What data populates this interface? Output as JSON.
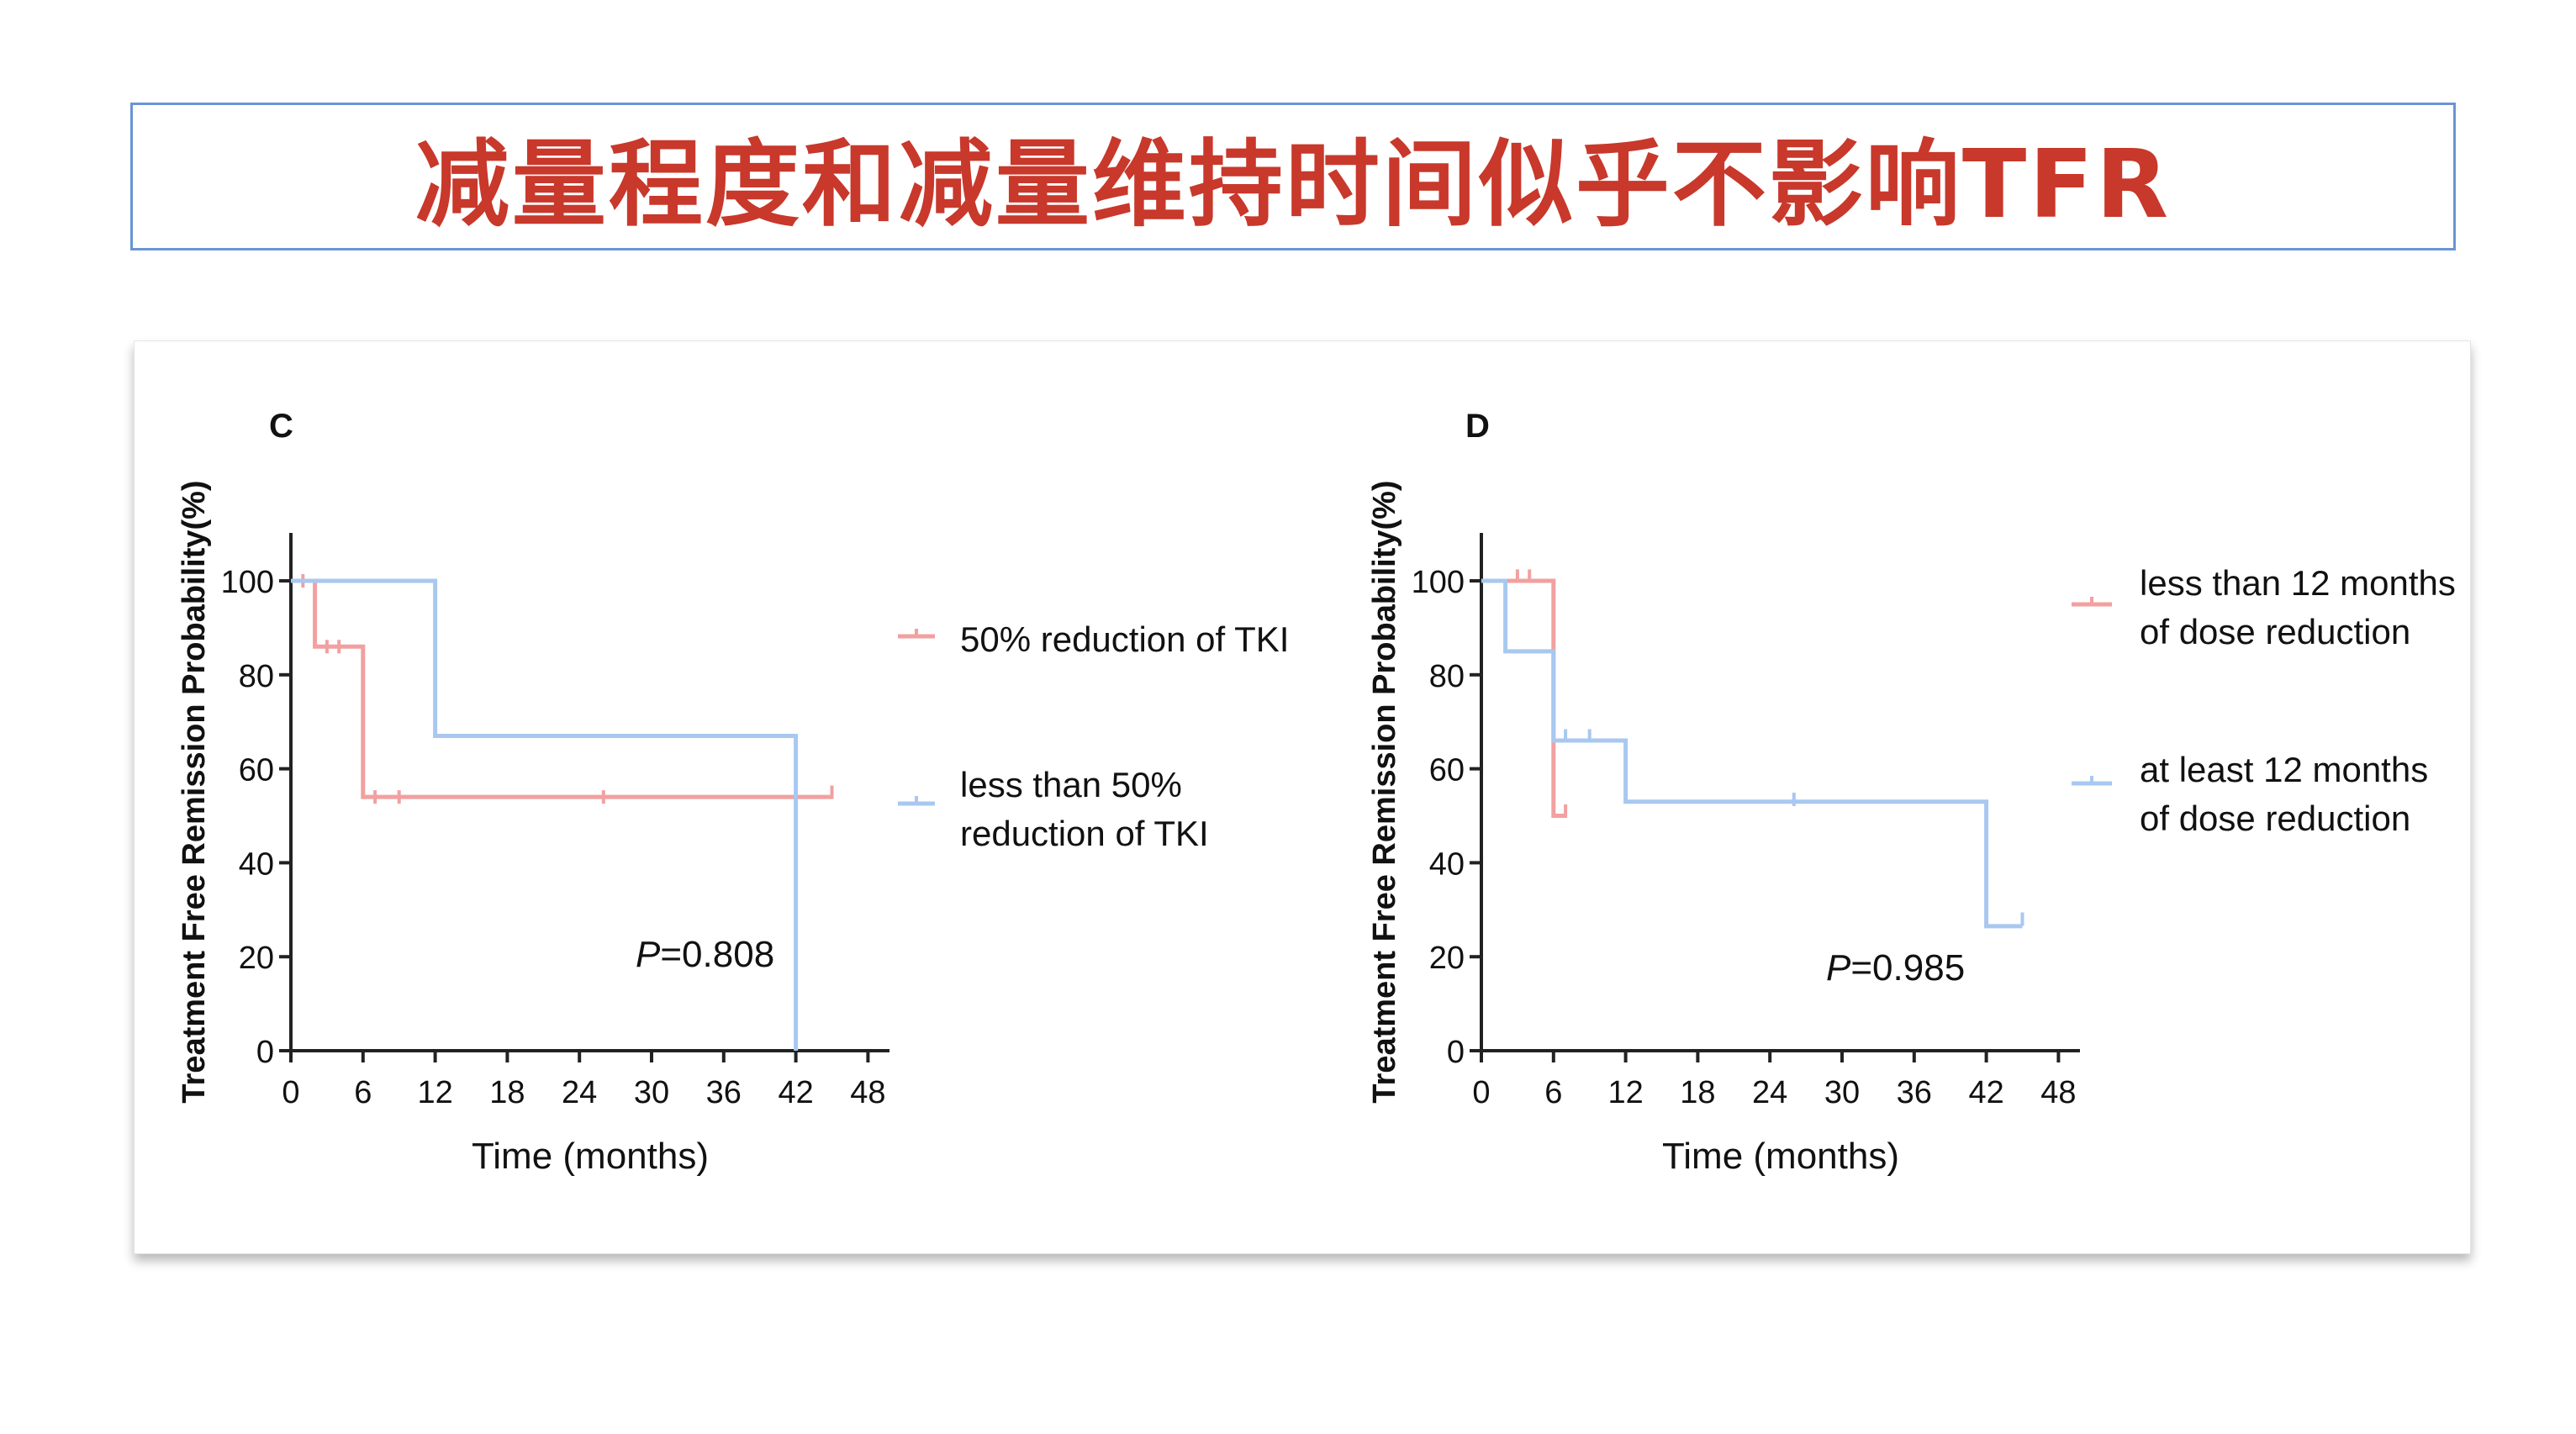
{
  "title": "减量程度和减量维持时间似乎不影响TFR",
  "colors": {
    "title": "#c8382b",
    "red_series": "#f2a0a0",
    "blue_series": "#a8c8f0",
    "axis": "#222222"
  },
  "chart_data": [
    {
      "type": "line",
      "panel_label": "C",
      "ylabel": "Treatment Free Remission Probability(%)",
      "xlabel": "Time (months)",
      "xlim": [
        0,
        50
      ],
      "ylim": [
        0,
        110
      ],
      "x_ticks": [
        0,
        6,
        12,
        18,
        24,
        30,
        36,
        42,
        48
      ],
      "y_ticks": [
        0,
        20,
        40,
        60,
        80,
        100
      ],
      "annotation": {
        "italic": "P",
        "text": "=0.808"
      },
      "series": [
        {
          "name": "50% reduction of TKI",
          "legend_lines": [
            "50% reduction of TKI"
          ],
          "color": "#f2a0a0",
          "steps": [
            [
              0,
              100
            ],
            [
              2,
              100
            ],
            [
              2,
              86
            ],
            [
              6,
              86
            ],
            [
              6,
              54
            ],
            [
              45,
              54
            ]
          ],
          "censors": [
            [
              1,
              100
            ],
            [
              3,
              86
            ],
            [
              4,
              86
            ],
            [
              7,
              54
            ],
            [
              9,
              54
            ],
            [
              26,
              54
            ],
            [
              45,
              55
            ]
          ]
        },
        {
          "name": "less than 50% reduction of TKI",
          "legend_lines": [
            "less than 50%",
            "reduction of TKI"
          ],
          "color": "#a8c8f0",
          "steps": [
            [
              0,
              100
            ],
            [
              12,
              100
            ],
            [
              12,
              67
            ],
            [
              42,
              67
            ],
            [
              42,
              0
            ]
          ],
          "censors": []
        }
      ]
    },
    {
      "type": "line",
      "panel_label": "D",
      "ylabel": "Treatment Free Remission Probability(%)",
      "xlabel": "Time (months)",
      "xlim": [
        0,
        50
      ],
      "ylim": [
        0,
        110
      ],
      "x_ticks": [
        0,
        6,
        12,
        18,
        24,
        30,
        36,
        42,
        48
      ],
      "y_ticks": [
        0,
        20,
        40,
        60,
        80,
        100
      ],
      "annotation": {
        "italic": "P",
        "text": "=0.985"
      },
      "series": [
        {
          "name": "less than 12 months of dose reduction",
          "legend_lines": [
            "less than 12 months",
            "of dose reduction"
          ],
          "color": "#f2a0a0",
          "steps": [
            [
              0,
              100
            ],
            [
              6,
              100
            ],
            [
              6,
              50
            ],
            [
              7,
              50
            ]
          ],
          "censors": [
            [
              3,
              101
            ],
            [
              4,
              101
            ],
            [
              7,
              51
            ]
          ]
        },
        {
          "name": "at least 12 months of dose reduction",
          "legend_lines": [
            "at least 12 months",
            "of dose reduction"
          ],
          "color": "#a8c8f0",
          "steps": [
            [
              0,
              100
            ],
            [
              2,
              100
            ],
            [
              2,
              85
            ],
            [
              6,
              85
            ],
            [
              6,
              66
            ],
            [
              12,
              66
            ],
            [
              12,
              53
            ],
            [
              42,
              53
            ],
            [
              42,
              26.5
            ],
            [
              45,
              26.5
            ]
          ],
          "censors": [
            [
              7,
              67
            ],
            [
              9,
              67
            ],
            [
              26,
              53.5
            ],
            [
              45,
              28
            ]
          ]
        }
      ]
    }
  ]
}
